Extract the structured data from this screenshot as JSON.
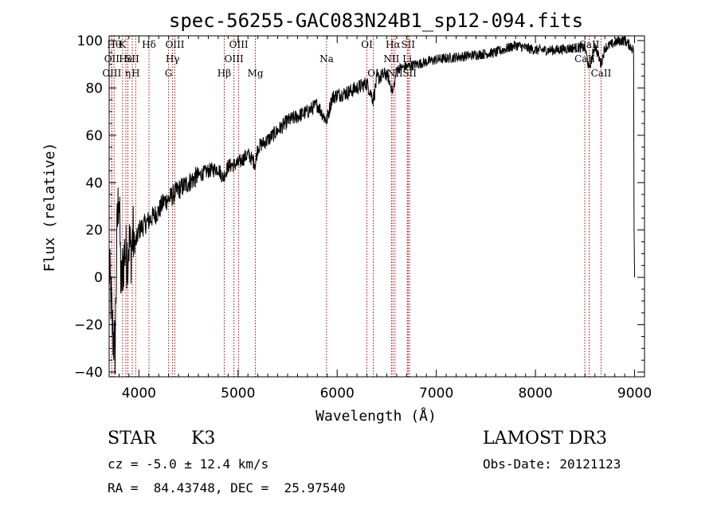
{
  "chart_data": {
    "type": "line",
    "title": "spec-56255-GAC083N24B1_sp12-094.fits",
    "xlabel": "Wavelength (Å)",
    "ylabel": "Flux (relative)",
    "xlim": [
      3700,
      9100
    ],
    "ylim": [
      -42,
      102
    ],
    "xticks": [
      4000,
      5000,
      6000,
      7000,
      8000,
      9000
    ],
    "yticks": [
      -40,
      -20,
      0,
      20,
      40,
      60,
      80,
      100
    ],
    "line_color": "#000000",
    "marker_color": "#b00000",
    "series": [
      {
        "name": "flux",
        "x": [
          3700,
          3720,
          3740,
          3760,
          3780,
          3800,
          3820,
          3840,
          3860,
          3880,
          3900,
          3920,
          3940,
          3960,
          3980,
          4000,
          4050,
          4100,
          4150,
          4200,
          4250,
          4300,
          4350,
          4400,
          4500,
          4600,
          4700,
          4800,
          4850,
          4900,
          5000,
          5100,
          5175,
          5200,
          5300,
          5400,
          5500,
          5600,
          5700,
          5800,
          5893,
          5950,
          6000,
          6100,
          6200,
          6300,
          6365,
          6400,
          6500,
          6563,
          6600,
          6700,
          6800,
          6900,
          7000,
          7200,
          7400,
          7600,
          7800,
          8000,
          8200,
          8400,
          8500,
          8542,
          8600,
          8662,
          8700,
          8800,
          8850,
          8900,
          8950,
          8990,
          9000
        ],
        "y": [
          5,
          -10,
          -25,
          -30,
          20,
          38,
          -5,
          5,
          12,
          8,
          15,
          10,
          18,
          14,
          16,
          20,
          22,
          24,
          26,
          28,
          32,
          33,
          35,
          37,
          40,
          43,
          45,
          46,
          42,
          47,
          48,
          52,
          48,
          55,
          58,
          62,
          66,
          68,
          70,
          73,
          66,
          76,
          77,
          78,
          80,
          82,
          75,
          84,
          86,
          78,
          88,
          89,
          90,
          91,
          92,
          93,
          94,
          95,
          98,
          96,
          96,
          97,
          97,
          88,
          98,
          90,
          97,
          99,
          100,
          100,
          98,
          96,
          0
        ]
      }
    ],
    "line_markers": [
      {
        "x": 3750,
        "label": "Hθ",
        "tier": 0
      },
      {
        "x": 3727,
        "label": "OII",
        "tier": 1
      },
      {
        "x": 3727,
        "label": "OIII",
        "tier": 2
      },
      {
        "x": 3835,
        "label": "K",
        "tier": 0
      },
      {
        "x": 3869,
        "label": "He",
        "tier": 1
      },
      {
        "x": 3889,
        "label": "η",
        "tier": 2
      },
      {
        "x": 3933,
        "label": "SII",
        "tier": 1
      },
      {
        "x": 3968,
        "label": "H",
        "tier": 2
      },
      {
        "x": 4102,
        "label": "Hδ",
        "tier": 0
      },
      {
        "x": 4300,
        "label": "G",
        "tier": 2
      },
      {
        "x": 4340,
        "label": "Hγ",
        "tier": 1
      },
      {
        "x": 4363,
        "label": "OIII",
        "tier": 0
      },
      {
        "x": 4861,
        "label": "Hβ",
        "tier": 2
      },
      {
        "x": 4959,
        "label": "OIII",
        "tier": 1
      },
      {
        "x": 5007,
        "label": "OIII",
        "tier": 0
      },
      {
        "x": 5175,
        "label": "Mg",
        "tier": 2
      },
      {
        "x": 5893,
        "label": "Na",
        "tier": 1
      },
      {
        "x": 6300,
        "label": "OI",
        "tier": 0
      },
      {
        "x": 6364,
        "label": "OI",
        "tier": 2
      },
      {
        "x": 6548,
        "label": "NII",
        "tier": 1
      },
      {
        "x": 6563,
        "label": "Hα",
        "tier": 0
      },
      {
        "x": 6583,
        "label": "NII",
        "tier": 2
      },
      {
        "x": 6707,
        "label": "Li",
        "tier": 1
      },
      {
        "x": 6716,
        "label": "SII",
        "tier": 0
      },
      {
        "x": 6731,
        "label": "SII",
        "tier": 2
      },
      {
        "x": 8498,
        "label": "CaII",
        "tier": 1
      },
      {
        "x": 8542,
        "label": "CaII",
        "tier": 0
      },
      {
        "x": 8662,
        "label": "CaII",
        "tier": 2
      }
    ]
  },
  "info": {
    "object_class": "STAR",
    "subclass": "K3",
    "survey": "LAMOST DR3",
    "redshift_text": "cz = -5.0 ± 12.4 km/s",
    "obs_date_text": "Obs-Date: 20121123",
    "coords_text": "RA =  84.43748, DEC =  25.97540"
  }
}
